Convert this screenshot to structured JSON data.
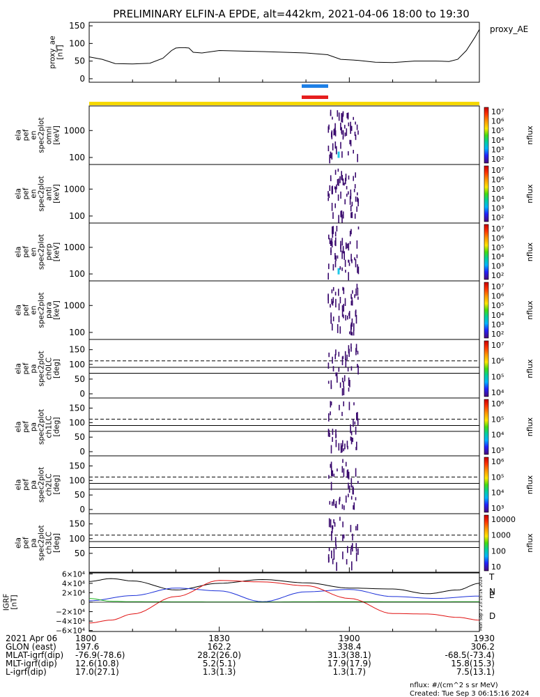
{
  "title": "PRELIMINARY ELFIN-A EPDE, alt=442km, 2021-04-06 18:00 to 19:30",
  "colors": {
    "ae_line": "#000000",
    "blue_bar": "#1e7fe6",
    "red_bar": "#e61e1e",
    "yellow_bar": "#f5d800",
    "IGRF_T": "#000000",
    "IGRF_N": "#1a2fd8",
    "IGRF_E": "#1fb81f",
    "IGRF_D": "#e01010",
    "spec_dark": "#3a0a6e",
    "spec_cyan": "#20c8e8"
  },
  "panels": {
    "ae": {
      "ylabel_lines": [
        "proxy_ae",
        "[nT]"
      ],
      "legend": "proxy_AE",
      "yticks": [
        "150",
        "100",
        "50",
        "0"
      ]
    },
    "energy": [
      {
        "ylabel_lines": [
          "ela",
          "pef",
          "en",
          "spec2plot",
          "omni",
          "[keV]"
        ],
        "yticks": [
          "1000",
          "100"
        ],
        "cb_label": "nflux",
        "cb_ticks": [
          "10⁷",
          "10⁶",
          "10⁵",
          "10⁴",
          "10³",
          "10²"
        ]
      },
      {
        "ylabel_lines": [
          "ela",
          "pef",
          "en",
          "spec2plot",
          "anti",
          "[keV]"
        ],
        "yticks": [
          "1000",
          "100"
        ],
        "cb_label": "nflux",
        "cb_ticks": [
          "10⁷",
          "10⁶",
          "10⁵",
          "10⁴",
          "10³",
          "10²"
        ]
      },
      {
        "ylabel_lines": [
          "ela",
          "pef",
          "en",
          "spec2plot",
          "perp",
          "[keV]"
        ],
        "yticks": [
          "1000",
          "100"
        ],
        "cb_label": "nflux",
        "cb_ticks": [
          "10⁷",
          "10⁶",
          "10⁵",
          "10⁴",
          "10³",
          "10²"
        ]
      },
      {
        "ylabel_lines": [
          "ela",
          "pef",
          "en",
          "spec2plot",
          "para",
          "[keV]"
        ],
        "yticks": [
          "1000",
          "100"
        ],
        "cb_label": "nflux",
        "cb_ticks": [
          "10⁷",
          "10⁶",
          "10⁵",
          "10⁴",
          "10³",
          "10²"
        ]
      }
    ],
    "pitch": [
      {
        "ylabel_lines": [
          "ela",
          "pef",
          "pa",
          "spec2plot",
          "ch0LC",
          "[deg]"
        ],
        "yticks": [
          "150",
          "100",
          "50",
          "0"
        ],
        "cb_label": "nflux",
        "cb_ticks": [
          "10⁷",
          "10⁶",
          "10⁵",
          "10⁴"
        ]
      },
      {
        "ylabel_lines": [
          "ela",
          "pef",
          "pa",
          "spec2plot",
          "ch1LC",
          "[deg]"
        ],
        "yticks": [
          "150",
          "100",
          "50",
          "0"
        ],
        "cb_label": "nflux",
        "cb_ticks": [
          "10⁶",
          "10⁵",
          "10⁴",
          "10³"
        ]
      },
      {
        "ylabel_lines": [
          "ela",
          "pef",
          "pa",
          "spec2plot",
          "ch2LC",
          "[deg]"
        ],
        "yticks": [
          "150",
          "100",
          "50",
          "0"
        ],
        "cb_label": "nflux",
        "cb_ticks": [
          "10⁶",
          "10⁵",
          "10⁴",
          "10³"
        ]
      },
      {
        "ylabel_lines": [
          "ela",
          "pef",
          "pa",
          "spec2plot",
          "ch3LC",
          "[deg]"
        ],
        "yticks": [
          "150",
          "100",
          "50"
        ],
        "cb_label": "nflux",
        "cb_ticks": [
          "10000",
          "1000",
          "100",
          "10"
        ]
      }
    ],
    "igrf": {
      "ylabel_lines": [
        "IGRF",
        "[nT]"
      ],
      "yticks": [
        "6×10⁴",
        "4×10⁴",
        "2×10⁴",
        "0",
        "−2×10⁴",
        "−4×10⁴",
        "−6×10⁴"
      ],
      "legend": [
        "T",
        "N",
        "E",
        "D"
      ],
      "side_text": "Mon Sep  2 23:15:16 2024"
    }
  },
  "xaxis": {
    "ticks": [
      "1800",
      "1830",
      "1900",
      "1930"
    ],
    "rows": [
      {
        "label": "2021 Apr 06",
        "values": [
          "1800",
          "1830",
          "1900",
          "1930"
        ]
      },
      {
        "label": "GLON (east)",
        "values": [
          "197.6",
          "162.2",
          "338.4",
          "306.2"
        ]
      },
      {
        "label": "MLAT-igrf(dip)",
        "values": [
          "-76.9(-78.6)",
          "28.2(26.0)",
          "31.3(38.1)",
          "-68.5(-73.4)"
        ]
      },
      {
        "label": "MLT-igrf(dip)",
        "values": [
          "12.6(10.8)",
          "5.2(5.1)",
          "17.9(17.9)",
          "15.8(15.3)"
        ]
      },
      {
        "label": "L-igrf(dip)",
        "values": [
          "17.0(27.1)",
          "1.3(1.3)",
          "1.3(1.7)",
          "7.5(13.1)"
        ]
      }
    ]
  },
  "footer": {
    "units": "nflux: #/(cm^2 s sr MeV)",
    "created": "Created: Tue Sep  3 06:15:16 2024"
  },
  "chart_data": {
    "type": "line",
    "title": "PRELIMINARY ELFIN-A EPDE, alt=442km, 2021-04-06 18:00 to 19:30",
    "x_units": "minutes after 18:00 UT",
    "xlim": [
      0,
      90
    ],
    "proxy_ae": {
      "ylim": [
        -10,
        160
      ],
      "x": [
        0,
        3,
        6,
        10,
        14,
        17,
        19,
        20,
        21,
        22,
        23,
        24,
        26,
        30,
        40,
        50,
        55,
        58,
        62,
        66,
        70,
        75,
        80,
        83,
        85,
        87,
        89,
        90
      ],
      "y": [
        62,
        55,
        43,
        42,
        44,
        58,
        80,
        87,
        88,
        88,
        87,
        75,
        73,
        80,
        77,
        73,
        68,
        55,
        52,
        47,
        46,
        50,
        50,
        49,
        55,
        80,
        118,
        140
      ]
    },
    "igrf": {
      "ylim": [
        -62000,
        62000
      ],
      "series": [
        {
          "name": "T",
          "x": [
            0,
            5,
            10,
            20,
            30,
            40,
            50,
            60,
            70,
            78,
            85,
            90
          ],
          "y": [
            44000,
            50000,
            45000,
            26000,
            40000,
            48000,
            41000,
            30000,
            28000,
            18000,
            26000,
            40000
          ]
        },
        {
          "name": "N",
          "x": [
            0,
            10,
            20,
            30,
            40,
            50,
            60,
            70,
            80,
            90
          ],
          "y": [
            3000,
            14000,
            30000,
            24000,
            1000,
            22000,
            27000,
            12000,
            8000,
            13000
          ]
        },
        {
          "name": "E",
          "x": [
            0,
            5,
            10,
            20,
            30,
            40,
            50,
            60,
            70,
            80,
            90
          ],
          "y": [
            8000,
            2000,
            1000,
            800,
            600,
            500,
            900,
            1200,
            900,
            900,
            1100
          ]
        },
        {
          "name": "D",
          "x": [
            0,
            5,
            10,
            20,
            30,
            40,
            50,
            60,
            70,
            78,
            85,
            90
          ],
          "y": [
            -44000,
            -38000,
            -25000,
            12000,
            46000,
            43000,
            35000,
            8000,
            -24000,
            -25000,
            -32000,
            -38000
          ]
        }
      ]
    },
    "spectrogram_activity_window": [
      55,
      62
    ],
    "science_zone_bars": [
      "blue",
      "red"
    ]
  }
}
